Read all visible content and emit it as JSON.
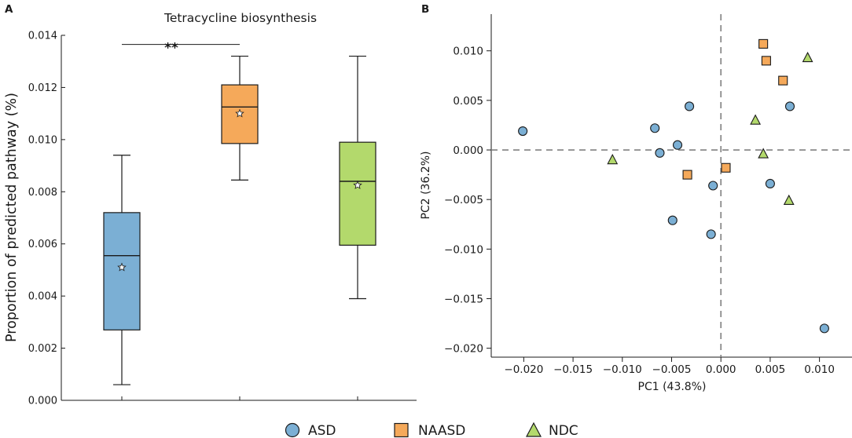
{
  "colors": {
    "ASD": "#7bafd4",
    "NAASD": "#f5a95a",
    "NDC": "#b3d96c",
    "edge": "#1a1a1a",
    "ref_line": "#808080"
  },
  "legend": [
    {
      "label": "ASD",
      "marker": "circle",
      "group": "ASD"
    },
    {
      "label": "NAASD",
      "marker": "square",
      "group": "NAASD"
    },
    {
      "label": "NDC",
      "marker": "triangle",
      "group": "NDC"
    }
  ],
  "chart_data": [
    {
      "panel": "A",
      "type": "box",
      "title": "Tetracycline biosynthesis",
      "xlabel": "",
      "ylabel": "Proportion of predicted pathway (%)",
      "ylim": [
        0,
        0.014
      ],
      "yticks": [
        "0.000",
        "0.002",
        "0.004",
        "0.006",
        "0.008",
        "0.010",
        "0.012",
        "0.014"
      ],
      "series": [
        {
          "name": "ASD",
          "whisker_low": 0.0006,
          "q1": 0.0027,
          "median": 0.00555,
          "q3": 0.0072,
          "whisker_high": 0.0094,
          "mean": 0.0051
        },
        {
          "name": "NAASD",
          "whisker_low": 0.00845,
          "q1": 0.00985,
          "median": 0.01125,
          "q3": 0.0121,
          "whisker_high": 0.0132,
          "mean": 0.011
        },
        {
          "name": "NDC",
          "whisker_low": 0.0039,
          "q1": 0.00595,
          "median": 0.0084,
          "q3": 0.0099,
          "whisker_high": 0.0132,
          "mean": 0.00825
        }
      ],
      "annotations": [
        {
          "text": "**",
          "between": [
            "ASD",
            "NAASD"
          ],
          "y": 0.01365
        }
      ]
    },
    {
      "panel": "B",
      "type": "scatter",
      "title": "",
      "xlabel": "PC1 (43.8%)",
      "ylabel": "PC2 (36.2%)",
      "xlim": [
        -0.0233,
        0.0133
      ],
      "ylim": [
        -0.0209,
        0.0137
      ],
      "xticks": [
        "-0.020",
        "-0.015",
        "-0.010",
        "-0.005",
        "0.000",
        "0.005",
        "0.010"
      ],
      "yticks": [
        "-0.020",
        "-0.015",
        "-0.010",
        "-0.005",
        "0.000",
        "0.005",
        "0.010"
      ],
      "ref_lines": {
        "x": 0,
        "y": 0
      },
      "series": [
        {
          "name": "ASD",
          "marker": "circle",
          "points": [
            [
              -0.0201,
              0.0019
            ],
            [
              -0.0067,
              0.0022
            ],
            [
              -0.0062,
              -0.0003
            ],
            [
              -0.0044,
              0.0005
            ],
            [
              -0.0032,
              0.0044
            ],
            [
              -0.0008,
              -0.0036
            ],
            [
              0.007,
              0.0044
            ],
            [
              0.005,
              -0.0034
            ],
            [
              -0.0049,
              -0.0071
            ],
            [
              -0.001,
              -0.0085
            ],
            [
              0.0105,
              -0.018
            ]
          ]
        },
        {
          "name": "NAASD",
          "marker": "square",
          "points": [
            [
              0.0043,
              0.0107
            ],
            [
              0.0046,
              0.009
            ],
            [
              0.0063,
              0.007
            ],
            [
              0.0005,
              -0.0018
            ],
            [
              -0.0034,
              -0.0025
            ]
          ]
        },
        {
          "name": "NDC",
          "marker": "triangle",
          "points": [
            [
              0.0088,
              0.0093
            ],
            [
              0.0035,
              0.003
            ],
            [
              0.0043,
              -0.0004
            ],
            [
              0.0069,
              -0.0051
            ],
            [
              -0.011,
              -0.001
            ]
          ]
        }
      ]
    }
  ]
}
